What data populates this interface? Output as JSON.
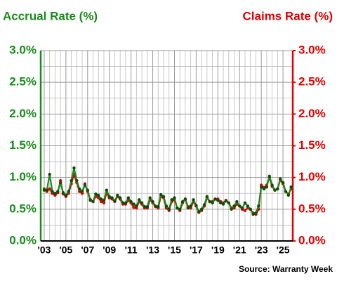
{
  "chart_data": {
    "type": "line",
    "y_title": "Accrual Rate (%)",
    "y2_title": "Claims Rate (%)",
    "source": "Source: Warranty Week",
    "x": [
      2003,
      2003.25,
      2003.5,
      2003.75,
      2004,
      2004.25,
      2004.5,
      2004.75,
      2005,
      2005.25,
      2005.5,
      2005.75,
      2006,
      2006.25,
      2006.5,
      2006.75,
      2007,
      2007.25,
      2007.5,
      2007.75,
      2008,
      2008.25,
      2008.5,
      2008.75,
      2009,
      2009.25,
      2009.5,
      2009.75,
      2010,
      2010.25,
      2010.5,
      2010.75,
      2011,
      2011.25,
      2011.5,
      2011.75,
      2012,
      2012.25,
      2012.5,
      2012.75,
      2013,
      2013.25,
      2013.5,
      2013.75,
      2014,
      2014.25,
      2014.5,
      2014.75,
      2015,
      2015.25,
      2015.5,
      2015.75,
      2016,
      2016.25,
      2016.5,
      2016.75,
      2017,
      2017.25,
      2017.5,
      2017.75,
      2018,
      2018.25,
      2018.5,
      2018.75,
      2019,
      2019.25,
      2019.5,
      2019.75,
      2020,
      2020.25,
      2020.5,
      2020.75,
      2021,
      2021.25,
      2021.5,
      2021.75,
      2022,
      2022.25,
      2022.5,
      2022.75,
      2023,
      2023.25,
      2023.5,
      2023.75,
      2024,
      2024.25,
      2024.5,
      2024.75,
      2025,
      2025.25,
      2025.5,
      2025.75
    ],
    "series": [
      {
        "name": "Claims Rate (%)",
        "axis": "y2",
        "color": "#e00000",
        "marker_color": "#e00000",
        "values": [
          0.82,
          0.78,
          0.82,
          0.75,
          0.72,
          0.76,
          0.95,
          0.74,
          0.7,
          0.75,
          0.9,
          1.05,
          0.92,
          0.78,
          0.75,
          0.9,
          0.78,
          0.64,
          0.62,
          0.7,
          0.68,
          0.62,
          0.6,
          0.76,
          0.68,
          0.66,
          0.62,
          0.7,
          0.66,
          0.58,
          0.58,
          0.64,
          0.6,
          0.53,
          0.52,
          0.62,
          0.58,
          0.52,
          0.52,
          0.65,
          0.6,
          0.54,
          0.52,
          0.7,
          0.68,
          0.52,
          0.48,
          0.62,
          0.65,
          0.52,
          0.48,
          0.6,
          0.66,
          0.54,
          0.52,
          0.62,
          0.55,
          0.45,
          0.48,
          0.55,
          0.68,
          0.62,
          0.62,
          0.66,
          0.66,
          0.62,
          0.6,
          0.64,
          0.6,
          0.52,
          0.52,
          0.58,
          0.55,
          0.5,
          0.48,
          0.52,
          0.5,
          0.44,
          0.42,
          0.5,
          0.88,
          0.84,
          0.88,
          1.0,
          0.86,
          0.8,
          0.82,
          0.96,
          0.9,
          0.78,
          0.74,
          0.82
        ]
      },
      {
        "name": "Accrual Rate (%)",
        "axis": "y",
        "color": "#1a8a1a",
        "marker_color": "#0b4d0b",
        "values": [
          0.8,
          0.8,
          1.05,
          0.78,
          0.75,
          0.78,
          0.92,
          0.76,
          0.72,
          0.78,
          0.95,
          1.15,
          0.95,
          0.82,
          0.78,
          0.88,
          0.8,
          0.65,
          0.62,
          0.74,
          0.72,
          0.66,
          0.64,
          0.8,
          0.7,
          0.68,
          0.63,
          0.72,
          0.68,
          0.6,
          0.6,
          0.68,
          0.62,
          0.58,
          0.55,
          0.65,
          0.6,
          0.54,
          0.54,
          0.68,
          0.62,
          0.55,
          0.54,
          0.73,
          0.7,
          0.55,
          0.5,
          0.65,
          0.68,
          0.52,
          0.5,
          0.62,
          0.66,
          0.52,
          0.55,
          0.65,
          0.56,
          0.46,
          0.5,
          0.57,
          0.7,
          0.62,
          0.6,
          0.66,
          0.64,
          0.6,
          0.58,
          0.63,
          0.6,
          0.5,
          0.55,
          0.62,
          0.55,
          0.52,
          0.6,
          0.55,
          0.5,
          0.42,
          0.44,
          0.55,
          0.85,
          0.82,
          0.85,
          1.02,
          0.88,
          0.8,
          0.82,
          0.98,
          0.92,
          0.78,
          0.72,
          0.85
        ]
      }
    ],
    "xlim": [
      2002.68,
      2025.9
    ],
    "xticks": [
      {
        "value": 2003,
        "label": "'03"
      },
      {
        "value": 2005,
        "label": "'05"
      },
      {
        "value": 2007,
        "label": "'07"
      },
      {
        "value": 2009,
        "label": "'09"
      },
      {
        "value": 2011,
        "label": "'11"
      },
      {
        "value": 2013,
        "label": "'13"
      },
      {
        "value": 2015,
        "label": "'15"
      },
      {
        "value": 2017,
        "label": "'17"
      },
      {
        "value": 2019,
        "label": "'19"
      },
      {
        "value": 2021,
        "label": "'21"
      },
      {
        "value": 2023,
        "label": "'23"
      },
      {
        "value": 2025,
        "label": "'25"
      }
    ],
    "ylim": [
      0,
      3
    ],
    "y2lim": [
      0,
      3
    ],
    "yticks": [
      {
        "value": 0,
        "label": "0.0%"
      },
      {
        "value": 0.5,
        "label": "0.5%"
      },
      {
        "value": 1,
        "label": "1.0%"
      },
      {
        "value": 1.5,
        "label": "1.5%"
      },
      {
        "value": 2,
        "label": "2.0%"
      },
      {
        "value": 2.5,
        "label": "2.5%"
      },
      {
        "value": 3,
        "label": "3.0%"
      }
    ],
    "y2ticks": [
      {
        "value": 0,
        "label": "0.0%"
      },
      {
        "value": 0.5,
        "label": "0.5%"
      },
      {
        "value": 1,
        "label": "1.0%"
      },
      {
        "value": 1.5,
        "label": "1.5%"
      },
      {
        "value": 2,
        "label": "2.0%"
      },
      {
        "value": 2.5,
        "label": "2.5%"
      },
      {
        "value": 3,
        "label": "3.0%"
      }
    ],
    "y_color": "#1a8a1a",
    "y2_color": "#e00000",
    "grid": true
  }
}
